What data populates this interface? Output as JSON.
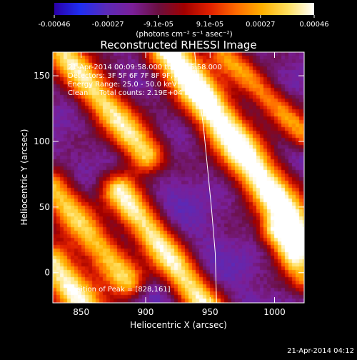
{
  "chart_data": {
    "type": "heatmap",
    "title": "Reconstructed RHESSI Image",
    "xlabel": "Heliocentric X (arcsec)",
    "ylabel": "Heliocentric Y (arcsec)",
    "xlim": [
      828,
      1023
    ],
    "ylim": [
      -23,
      168
    ],
    "x_ticks": [
      850,
      900,
      950,
      1000
    ],
    "y_ticks": [
      0,
      50,
      100,
      150
    ],
    "colorbar": {
      "min": -0.00046,
      "max": 0.00046,
      "tick_values": [
        -0.00046,
        -0.00027,
        -9.1e-05,
        9.1e-05,
        0.00027,
        0.00046
      ],
      "tick_labels": [
        "-0.00046",
        "-0.00027",
        "-9.1e-05",
        "9.1e-05",
        "0.00027",
        "0.00046"
      ],
      "unit_label": "(photons cm⁻² s⁻¹ asec⁻²)",
      "colors": [
        "#2a00a8",
        "#1f2ef0",
        "#5a2ab8",
        "#7a1f98",
        "#6a0f40",
        "#a00000",
        "#e02000",
        "#ff6a00",
        "#ffb000",
        "#ffe060",
        "#ffffff"
      ]
    },
    "annotations": {
      "time_range": "21-Apr-2014 00:09:58.000 to 00:15:58.000",
      "detectors": "Detectors: 3F 5F 6F 7F 8F 9F, Att:0",
      "energy_range": "Energy Range: 25.0 - 50.0 keV",
      "clean": "Clean     Total counts: 2.19E+04",
      "peak": "Position of Peak = [828,161]"
    },
    "limb": {
      "x": [
        938,
        941,
        945,
        948,
        951,
        954,
        955
      ],
      "y": [
        168,
        140,
        110,
        80,
        50,
        15,
        -23
      ]
    },
    "ridges": [
      {
        "x0": 828,
        "y0": 6,
        "x1": 855,
        "y1": -30,
        "amp": 1.0,
        "width": 11
      },
      {
        "x0": 828,
        "y0": 65,
        "x1": 885,
        "y1": -5,
        "amp": 0.85,
        "width": 10
      },
      {
        "x0": 835,
        "y0": 168,
        "x1": 900,
        "y1": 90,
        "amp": 0.95,
        "width": 10
      },
      {
        "x0": 880,
        "y0": 62,
        "x1": 950,
        "y1": -30,
        "amp": 0.9,
        "width": 10
      },
      {
        "x0": 918,
        "y0": 168,
        "x1": 1023,
        "y1": 25,
        "amp": 1.15,
        "width": 12
      },
      {
        "x0": 960,
        "y0": 168,
        "x1": 1023,
        "y1": 105,
        "amp": 0.7,
        "width": 8
      },
      {
        "x0": 1000,
        "y0": 30,
        "x1": 1023,
        "y1": -5,
        "amp": 0.6,
        "width": 8
      }
    ],
    "timestamp": "21-Apr-2014 04:12"
  }
}
